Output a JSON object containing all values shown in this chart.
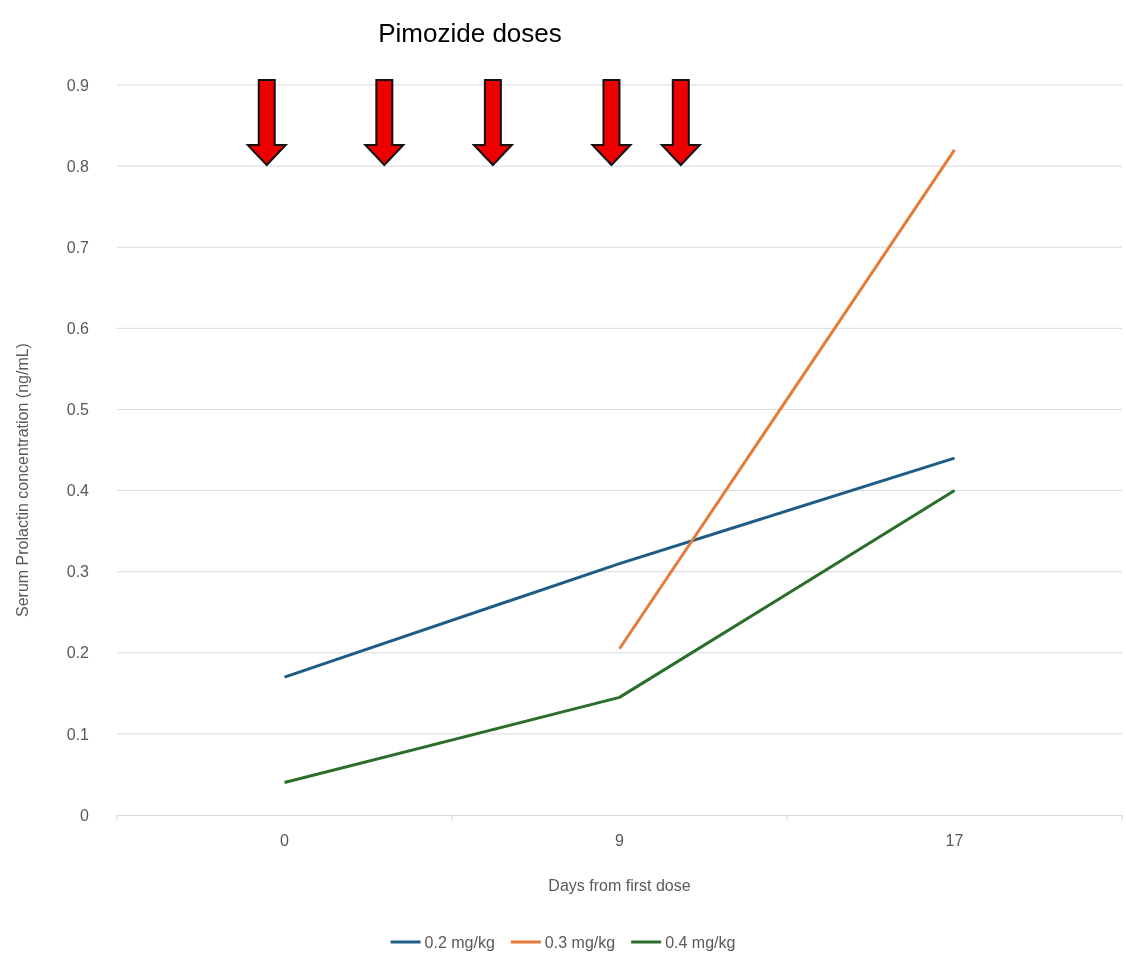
{
  "chart_data": {
    "type": "line",
    "xlabel": "Days from first dose",
    "ylabel": "Serum Prolactin concentration (ng/mL)",
    "annotations": [
      "Pimozide doses"
    ],
    "categories": [
      "0",
      "9",
      "17"
    ],
    "series": [
      {
        "name": "0.2 mg/kg",
        "color": "#1f5c85",
        "values": [
          0.17,
          0.31,
          0.44
        ]
      },
      {
        "name": "0.3 mg/kg",
        "color": "#e57b3a",
        "values": [
          null,
          0.205,
          0.82
        ]
      },
      {
        "name": "0.4 mg/kg",
        "color": "#2a6e2a",
        "values": [
          0.04,
          0.145,
          0.4
        ]
      }
    ],
    "ylim": [
      0,
      0.9
    ],
    "yticks": [
      0,
      0.1,
      0.2,
      0.3,
      0.4,
      0.5,
      0.6,
      0.7,
      0.8,
      0.9
    ],
    "grid": "y",
    "legend": "bottom",
    "marker": "none",
    "line_style": "solid"
  }
}
